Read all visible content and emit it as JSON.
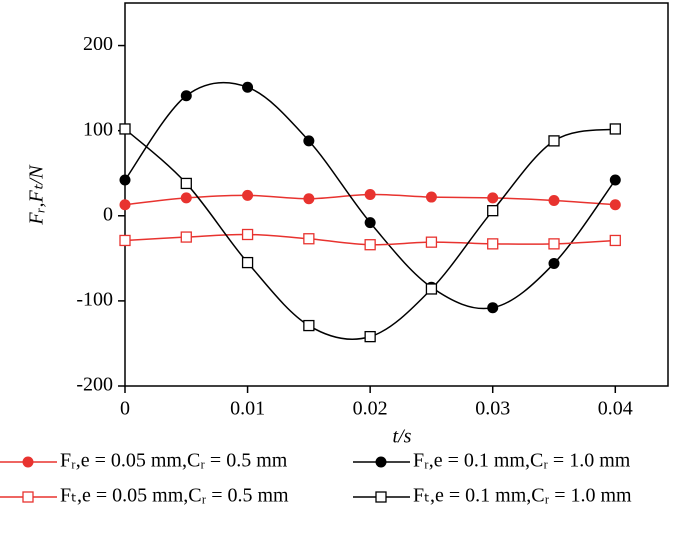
{
  "chart_data": {
    "type": "line",
    "x": [
      0,
      0.005,
      0.01,
      0.015,
      0.02,
      0.025,
      0.03,
      0.035,
      0.04
    ],
    "xlabel": "t/s",
    "ylabel": "Fᵣ,Fₜ/N",
    "xlim": [
      0,
      0.0443
    ],
    "ylim": [
      -200,
      250
    ],
    "xticks": [
      0,
      0.01,
      0.02,
      0.03,
      0.04
    ],
    "yticks": [
      -200,
      -100,
      0,
      100,
      200
    ],
    "series": [
      {
        "name": "Fᵣ,e = 0.05 mm,Cᵣ = 0.5 mm",
        "color": "#e8332f",
        "marker": "filled-circle",
        "values": [
          13,
          21,
          24,
          20,
          25,
          22,
          21,
          18,
          13
        ]
      },
      {
        "name": "Fᵣ,e = 0.1 mm,Cᵣ = 1.0 mm",
        "color": "#000000",
        "marker": "filled-circle",
        "values": [
          42,
          141,
          151,
          88,
          -8,
          -84,
          -108,
          -56,
          42
        ]
      },
      {
        "name": "Fₜ,e = 0.05 mm,Cᵣ = 0.5 mm",
        "color": "#e8332f",
        "marker": "open-square",
        "values": [
          -29,
          -25,
          -22,
          -27,
          -34,
          -31,
          -33,
          -33,
          -29
        ]
      },
      {
        "name": "Fₜ,e = 0.1 mm,Cᵣ = 1.0 mm",
        "color": "#000000",
        "marker": "open-square",
        "values": [
          102,
          38,
          -55,
          -129,
          -142,
          -86,
          6,
          88,
          102
        ]
      }
    ]
  }
}
